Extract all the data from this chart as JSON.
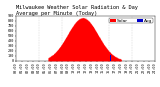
{
  "title": "Milwaukee Weather Solar Radiation & Day Average per Minute (Today)",
  "background_color": "#ffffff",
  "plot_bg_color": "#ffffff",
  "solar_color": "#ff0000",
  "avg_color": "#0000cc",
  "grid_color": "#bbbbbb",
  "x_start": 0,
  "x_end": 1440,
  "y_min": 0,
  "y_max": 900,
  "solar_peak_time": 690,
  "solar_peak_value": 860,
  "solar_start": 330,
  "solar_end": 1090,
  "avg_bar_time": 975,
  "avg_bar_value": 110,
  "dashed_lines": [
    240,
    480,
    720,
    960,
    1200
  ],
  "x_ticks": [
    0,
    60,
    120,
    180,
    240,
    300,
    360,
    420,
    480,
    540,
    600,
    660,
    720,
    780,
    840,
    900,
    960,
    1020,
    1080,
    1140,
    1200,
    1260,
    1320,
    1380,
    1440
  ],
  "y_ticks": [
    0,
    100,
    200,
    300,
    400,
    500,
    600,
    700,
    800,
    900
  ],
  "title_fontsize": 3.8,
  "tick_fontsize": 2.5,
  "legend_fontsize": 3.2,
  "solar_sigma_divisor": 4.8
}
